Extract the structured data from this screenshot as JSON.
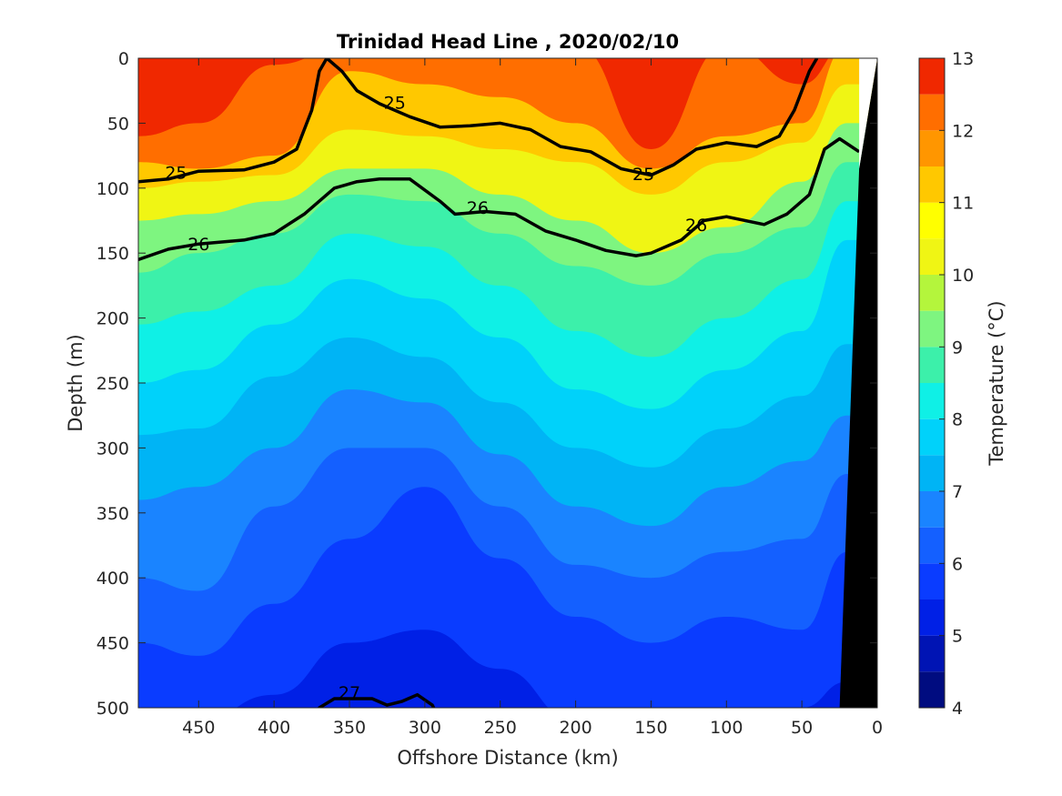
{
  "chart_data": {
    "type": "contourf",
    "title": "Trinidad Head Line , 2020/02/10",
    "xlabel": "Offshore Distance (km)",
    "ylabel": "Depth (m)",
    "colorbar_label": "Temperature (°C)",
    "xlim": [
      490,
      0
    ],
    "x_reversed": true,
    "ylim": [
      0,
      500
    ],
    "y_reversed": true,
    "x_ticks": [
      450,
      400,
      350,
      300,
      250,
      200,
      150,
      100,
      50,
      0
    ],
    "y_ticks": [
      0,
      50,
      100,
      150,
      200,
      250,
      300,
      350,
      400,
      450,
      500
    ],
    "colorbar_ticks": [
      4,
      5,
      6,
      7,
      8,
      9,
      10,
      11,
      12,
      13
    ],
    "temperature_levels": [
      4,
      4.5,
      5,
      5.5,
      6,
      6.5,
      7,
      7.5,
      8,
      8.5,
      9,
      9.5,
      10,
      10.5,
      11,
      11.5,
      12,
      12.5,
      13
    ],
    "level_colors": [
      "#000c80",
      "#0014b4",
      "#0020e6",
      "#0a3cff",
      "#1460ff",
      "#1a84ff",
      "#00b4f5",
      "#00d2fa",
      "#0ff0e6",
      "#3cf0aa",
      "#7ef580",
      "#b4f53c",
      "#f0f514",
      "#ffff00",
      "#ffc800",
      "#ff9600",
      "#ff6e00",
      "#f02800",
      "#d21400",
      "#aa0000"
    ],
    "temperature_profile_columns": {
      "x": [
        490,
        450,
        400,
        350,
        300,
        250,
        200,
        150,
        100,
        50,
        20
      ],
      "depth_of_isotherm": {
        "12": [
          60,
          50,
          5,
          -10,
          -10,
          -10,
          -10,
          70,
          -10,
          20,
          -10
        ],
        "11": [
          80,
          85,
          75,
          10,
          20,
          30,
          50,
          85,
          60,
          50,
          -10
        ],
        "10": [
          100,
          95,
          90,
          55,
          60,
          70,
          80,
          105,
          80,
          65,
          20
        ],
        "9": [
          125,
          120,
          110,
          85,
          85,
          105,
          125,
          150,
          130,
          95,
          50
        ],
        "8.5": [
          165,
          150,
          135,
          105,
          110,
          135,
          160,
          175,
          150,
          130,
          80
        ],
        "8": [
          205,
          195,
          175,
          135,
          145,
          175,
          210,
          230,
          200,
          170,
          110
        ],
        "7.5": [
          250,
          240,
          205,
          170,
          185,
          215,
          255,
          270,
          240,
          210,
          140
        ],
        "7": [
          290,
          285,
          245,
          215,
          230,
          265,
          300,
          315,
          285,
          260,
          220
        ],
        "6.5": [
          340,
          330,
          300,
          255,
          265,
          305,
          345,
          360,
          330,
          310,
          275
        ],
        "6": [
          400,
          410,
          345,
          300,
          300,
          345,
          390,
          400,
          380,
          370,
          320
        ],
        "5.5": [
          450,
          460,
          420,
          370,
          330,
          385,
          430,
          450,
          430,
          440,
          380
        ],
        "5": [
          500,
          510,
          490,
          450,
          440,
          470,
          510,
          520,
          510,
          500,
          480
        ]
      }
    },
    "density_contours": [
      {
        "label": "25",
        "bold": true,
        "points": [
          [
            490,
            95
          ],
          [
            470,
            93
          ],
          [
            450,
            87
          ],
          [
            420,
            86
          ],
          [
            400,
            80
          ],
          [
            385,
            70
          ],
          [
            375,
            40
          ],
          [
            370,
            10
          ],
          [
            365,
            0
          ],
          [
            355,
            10
          ],
          [
            345,
            25
          ],
          [
            330,
            35
          ],
          [
            310,
            45
          ],
          [
            290,
            53
          ],
          [
            270,
            52
          ],
          [
            250,
            50
          ],
          [
            230,
            55
          ],
          [
            210,
            68
          ],
          [
            190,
            72
          ],
          [
            170,
            85
          ],
          [
            150,
            90
          ],
          [
            135,
            82
          ],
          [
            120,
            70
          ],
          [
            100,
            65
          ],
          [
            80,
            68
          ],
          [
            65,
            60
          ],
          [
            55,
            40
          ],
          [
            45,
            10
          ],
          [
            40,
            0
          ]
        ]
      },
      {
        "label": "26",
        "bold": true,
        "points": [
          [
            490,
            155
          ],
          [
            470,
            147
          ],
          [
            450,
            143
          ],
          [
            420,
            140
          ],
          [
            400,
            135
          ],
          [
            380,
            120
          ],
          [
            360,
            100
          ],
          [
            345,
            95
          ],
          [
            330,
            93
          ],
          [
            310,
            93
          ],
          [
            290,
            110
          ],
          [
            280,
            120
          ],
          [
            260,
            118
          ],
          [
            240,
            120
          ],
          [
            220,
            133
          ],
          [
            200,
            140
          ],
          [
            180,
            148
          ],
          [
            160,
            152
          ],
          [
            150,
            150
          ],
          [
            130,
            140
          ],
          [
            115,
            125
          ],
          [
            100,
            122
          ],
          [
            75,
            128
          ],
          [
            60,
            120
          ],
          [
            45,
            105
          ],
          [
            35,
            70
          ],
          [
            25,
            62
          ],
          [
            12,
            72
          ]
        ]
      },
      {
        "label": "27",
        "bold": true,
        "points": [
          [
            380,
            520
          ],
          [
            370,
            500
          ],
          [
            360,
            493
          ],
          [
            335,
            493
          ],
          [
            325,
            498
          ],
          [
            315,
            495
          ],
          [
            305,
            490
          ],
          [
            295,
            498
          ],
          [
            290,
            510
          ]
        ]
      }
    ],
    "x_contour_label_positions": [
      {
        "label": "25",
        "x": 465,
        "y": 88
      },
      {
        "label": "25",
        "x": 320,
        "y": 34
      },
      {
        "label": "25",
        "x": 155,
        "y": 89
      },
      {
        "label": "26",
        "x": 450,
        "y": 143
      },
      {
        "label": "26",
        "x": 265,
        "y": 115
      },
      {
        "label": "26",
        "x": 120,
        "y": 128
      },
      {
        "label": "27",
        "x": 350,
        "y": 488
      }
    ],
    "land_mask": {
      "color": "#000000",
      "points": [
        [
          0,
          0
        ],
        [
          0,
          500
        ],
        [
          25,
          500
        ],
        [
          12,
          85
        ],
        [
          0,
          0
        ]
      ]
    },
    "grid": false,
    "legend": "colorbar-right"
  }
}
